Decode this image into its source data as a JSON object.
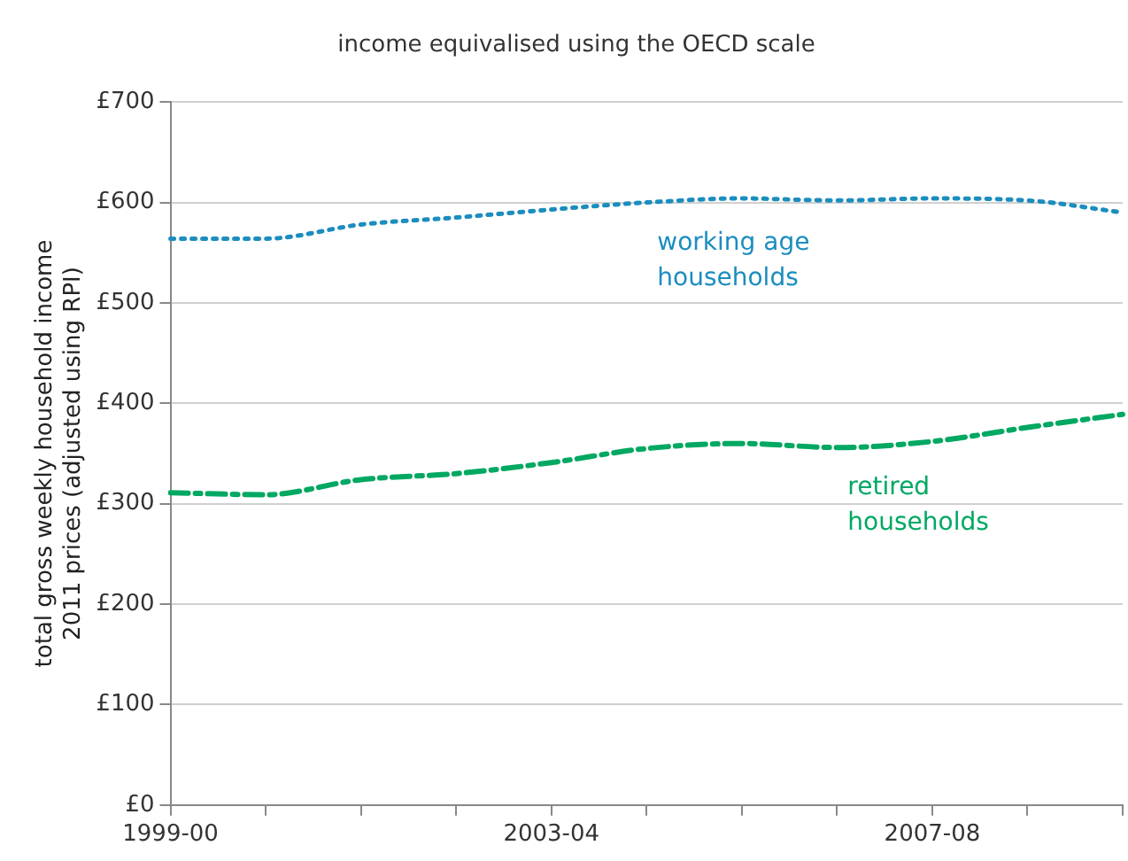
{
  "chart_data": {
    "type": "line",
    "title": "income equivalised using the OECD scale",
    "ylabel": "total gross weekly household income 2011 prices (adjusted using RPI)",
    "categories": [
      "1999-00",
      null,
      null,
      null,
      "2003-04",
      null,
      null,
      null,
      "2007-08",
      null,
      null
    ],
    "series": [
      {
        "name": "working age households",
        "color": "#1b8dbf",
        "line_style": "dotted",
        "values": [
          564,
          564,
          578,
          585,
          593,
          600,
          604,
          602,
          604,
          602,
          590
        ]
      },
      {
        "name": "retired households",
        "color": "#00a862",
        "line_style": "dashed",
        "values": [
          311,
          309,
          324,
          330,
          341,
          355,
          360,
          356,
          362,
          376,
          389
        ]
      }
    ],
    "ylim": [
      0,
      700
    ],
    "yticks": [
      {
        "value": 0,
        "label": "£0"
      },
      {
        "value": 100,
        "label": "£100"
      },
      {
        "value": 200,
        "label": "£200"
      },
      {
        "value": 300,
        "label": "£300"
      },
      {
        "value": 400,
        "label": "£400"
      },
      {
        "value": 500,
        "label": "£500"
      },
      {
        "value": 600,
        "label": "£600"
      },
      {
        "value": 700,
        "label": "£700"
      }
    ],
    "grid": "y",
    "legend": false,
    "marker": "none"
  }
}
